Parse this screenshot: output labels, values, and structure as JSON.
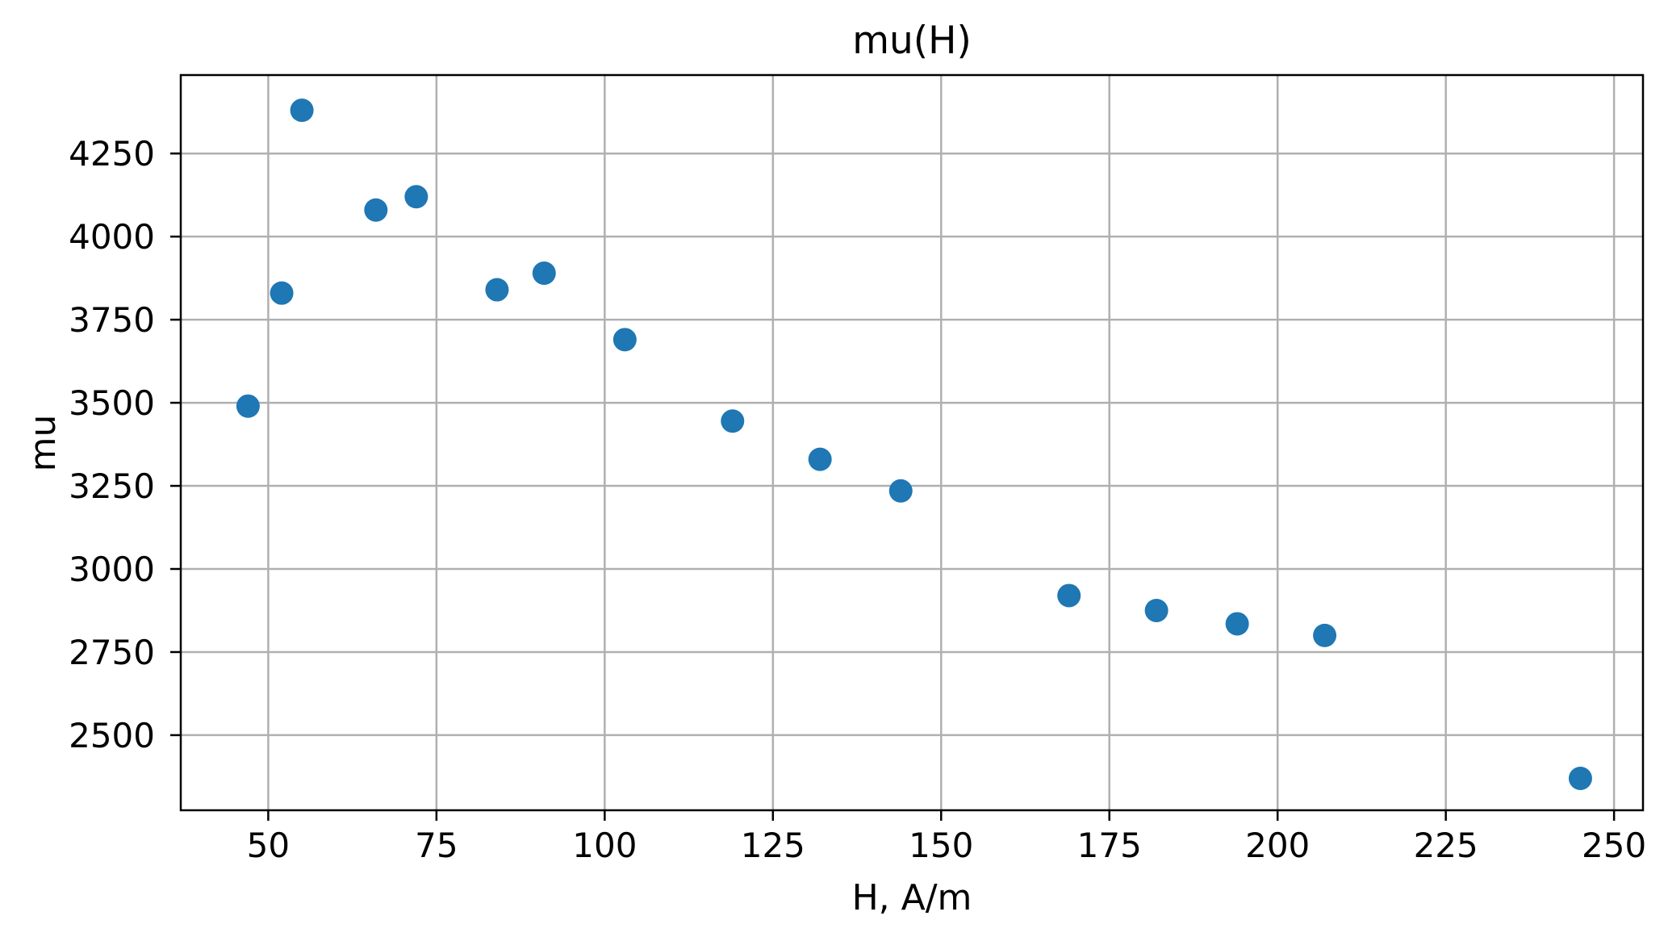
{
  "chart_data": {
    "type": "scatter",
    "title": "mu(H)",
    "xlabel": "H, A/m",
    "ylabel": "mu",
    "x": [
      47,
      52,
      55,
      66,
      72,
      84,
      91,
      103,
      119,
      132,
      144,
      169,
      182,
      194,
      207,
      245
    ],
    "y": [
      3490,
      3830,
      4380,
      4080,
      4120,
      3840,
      3890,
      3690,
      3445,
      3330,
      3235,
      2920,
      2875,
      2835,
      2800,
      2370
    ],
    "xlim": [
      37,
      254.3
    ],
    "ylim": [
      2274,
      4486
    ],
    "xticks": [
      50,
      75,
      100,
      125,
      150,
      175,
      200,
      225,
      250
    ],
    "yticks": [
      2500,
      2750,
      3000,
      3250,
      3500,
      3750,
      4000,
      4250
    ],
    "grid": true,
    "legend_position": "none",
    "marker_color": "#1f77b4",
    "grid_color": "#b0b0b0",
    "axis_color": "#000000",
    "background_color": "#ffffff"
  }
}
